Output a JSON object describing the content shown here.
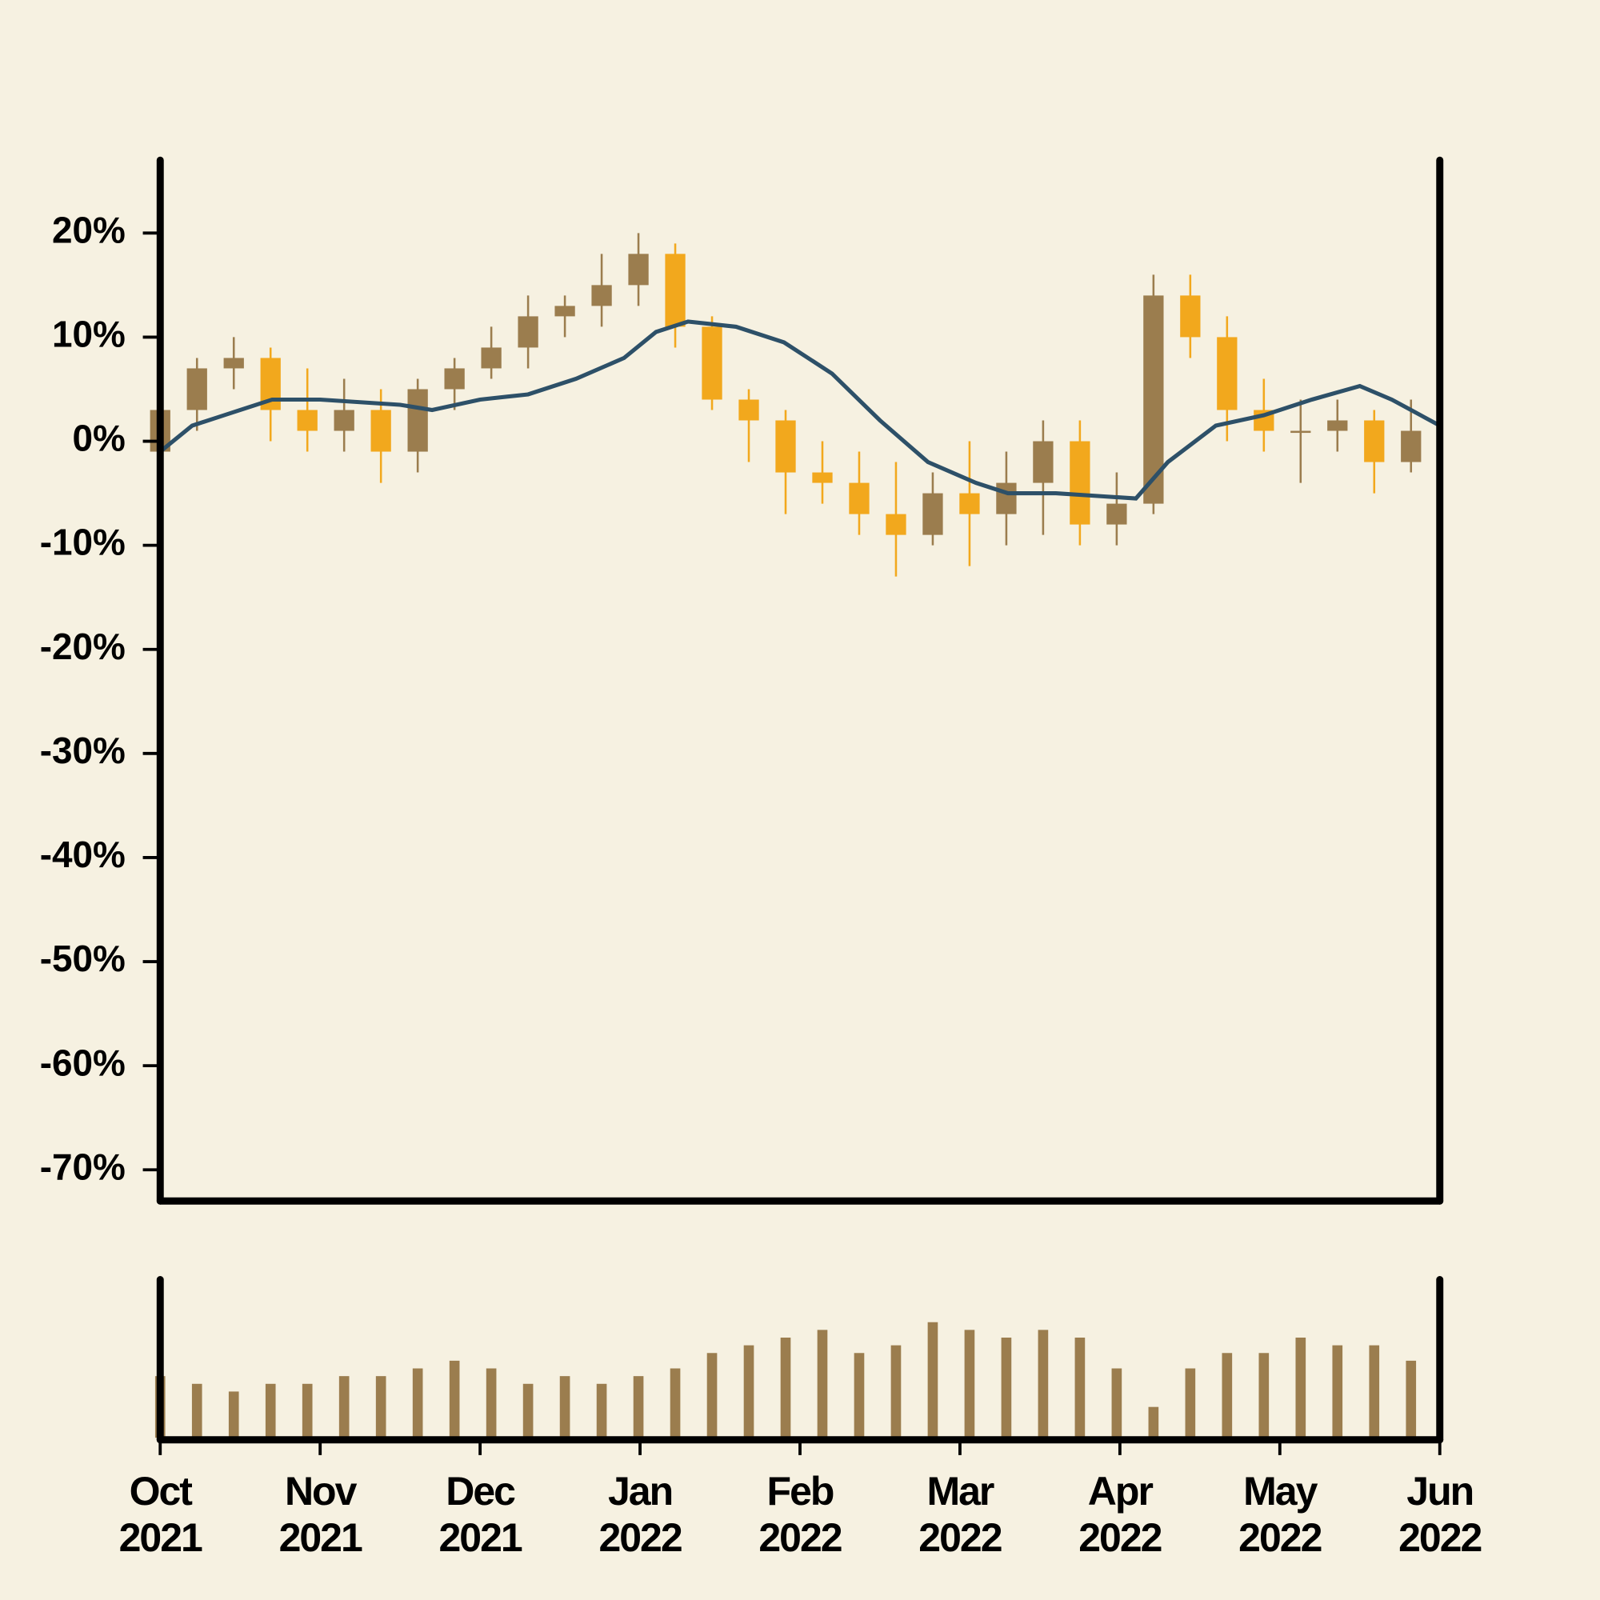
{
  "chart_data": {
    "type": "candlestick",
    "x": [
      0.0,
      0.23,
      0.46,
      0.69,
      0.92,
      1.15,
      1.38,
      1.61,
      1.84,
      2.07,
      2.3,
      2.53,
      2.76,
      2.99,
      3.22,
      3.45,
      3.68,
      3.91,
      4.14,
      4.37,
      4.6,
      4.83,
      5.06,
      5.29,
      5.52,
      5.75,
      5.98,
      6.21,
      6.44,
      6.67,
      6.9,
      7.13,
      7.36,
      7.59,
      7.82
    ],
    "open": [
      -1,
      3,
      7,
      8,
      3,
      1,
      3,
      -1,
      5,
      7,
      9,
      12,
      13,
      15,
      18,
      11,
      4,
      2,
      -3,
      -4,
      -7,
      -9,
      -5,
      -7,
      -4,
      0,
      -8,
      -6,
      14,
      10,
      3,
      1,
      1,
      2,
      -2
    ],
    "high": [
      4,
      8,
      10,
      9,
      7,
      6,
      5,
      6,
      8,
      11,
      14,
      14,
      18,
      20,
      19,
      12,
      5,
      3,
      0,
      -1,
      -2,
      -3,
      0,
      -1,
      2,
      2,
      -3,
      16,
      16,
      12,
      6,
      4,
      4,
      3,
      4
    ],
    "low": [
      -3,
      1,
      5,
      0,
      -1,
      -1,
      -4,
      -3,
      3,
      6,
      7,
      10,
      11,
      13,
      9,
      3,
      -2,
      -7,
      -6,
      -9,
      -13,
      -10,
      -12,
      -10,
      -9,
      -10,
      -10,
      -7,
      8,
      0,
      -1,
      -4,
      -1,
      -5,
      -3
    ],
    "close": [
      3,
      7,
      8,
      3,
      1,
      3,
      -1,
      5,
      7,
      9,
      12,
      13,
      15,
      18,
      11,
      4,
      2,
      -3,
      -4,
      -7,
      -9,
      -5,
      -7,
      -4,
      0,
      -8,
      -6,
      14,
      10,
      3,
      1,
      1,
      2,
      -2,
      1
    ],
    "up_color": "#9b7d4e",
    "down_color": "#f2a81d",
    "volume": [
      40,
      35,
      30,
      35,
      35,
      40,
      40,
      45,
      50,
      45,
      35,
      40,
      35,
      40,
      45,
      55,
      60,
      65,
      70,
      55,
      60,
      75,
      70,
      65,
      70,
      65,
      45,
      20,
      45,
      55,
      55,
      65,
      60,
      60,
      50
    ],
    "volume_color": "#9b7d4e",
    "volume_ylim": [
      0,
      100
    ],
    "ma": {
      "color": "#2d5068",
      "x": [
        0,
        0.2,
        0.4,
        0.7,
        1,
        1.5,
        1.7,
        2,
        2.3,
        2.6,
        2.9,
        3.1,
        3.3,
        3.6,
        3.9,
        4.2,
        4.5,
        4.8,
        5.1,
        5.3,
        5.6,
        5.9,
        6.1,
        6.3,
        6.6,
        6.9,
        7.2,
        7.5,
        7.7,
        8
      ],
      "values": [
        -1,
        1.5,
        2.5,
        4,
        4,
        3.5,
        3,
        4,
        4.5,
        6,
        8,
        10.5,
        11.5,
        11,
        9.5,
        6.5,
        2,
        -2,
        -4,
        -5,
        -5,
        -5.3,
        -5.5,
        -2,
        1.5,
        2.5,
        4,
        5.3,
        4,
        1.5
      ]
    },
    "xlim": [
      0,
      8
    ],
    "xticks": [
      {
        "value": 0,
        "label": "Oct\n2021"
      },
      {
        "value": 1,
        "label": "Nov\n2021"
      },
      {
        "value": 2,
        "label": "Dec\n2021"
      },
      {
        "value": 3,
        "label": "Jan\n2022"
      },
      {
        "value": 4,
        "label": "Feb\n2022"
      },
      {
        "value": 5,
        "label": "Mar\n2022"
      },
      {
        "value": 6,
        "label": "Apr\n2022"
      },
      {
        "value": 7,
        "label": "May\n2022"
      },
      {
        "value": 8,
        "label": "Jun\n2022"
      }
    ],
    "ylim": [
      -73,
      27
    ],
    "yticks": [
      {
        "value": 20,
        "label": "20%"
      },
      {
        "value": 10,
        "label": "10%"
      },
      {
        "value": 0,
        "label": "0%"
      },
      {
        "value": -10,
        "label": "-10%"
      },
      {
        "value": -20,
        "label": "-20%"
      },
      {
        "value": -30,
        "label": "-30%"
      },
      {
        "value": -40,
        "label": "-40%"
      },
      {
        "value": -50,
        "label": "-50%"
      },
      {
        "value": -60,
        "label": "-60%"
      },
      {
        "value": -70,
        "label": "-70%"
      }
    ]
  }
}
